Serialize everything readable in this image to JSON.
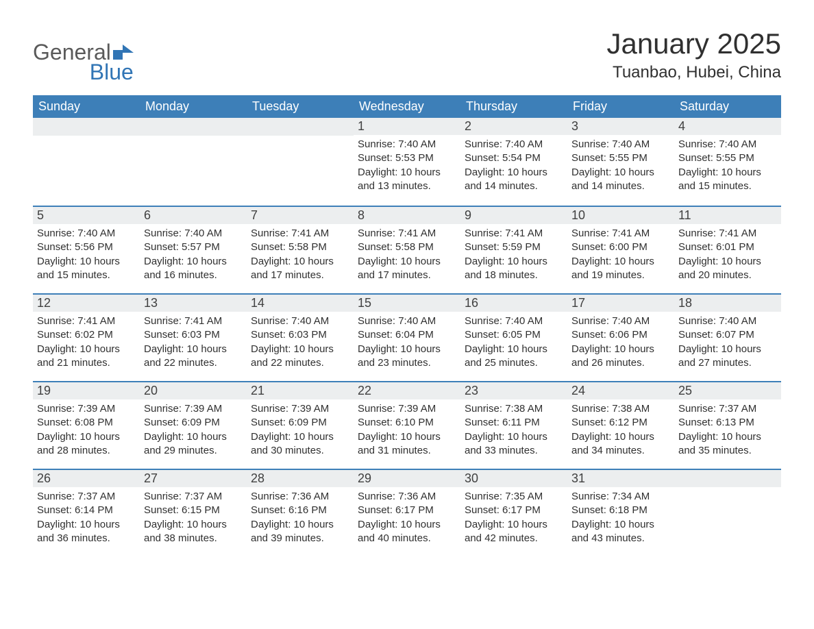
{
  "logo": {
    "general": "General",
    "blue": "Blue"
  },
  "title": "January 2025",
  "location": "Tuanbao, Hubei, China",
  "colors": {
    "header_bg": "#3d7fb8",
    "header_text": "#ffffff",
    "day_number_bg": "#eceeef",
    "border": "#3d7fb8",
    "body_text": "#303030",
    "logo_gray": "#5a5a5a",
    "logo_blue": "#3175b5",
    "background": "#ffffff"
  },
  "typography": {
    "title_fontsize": 42,
    "location_fontsize": 24,
    "header_fontsize": 18,
    "daynum_fontsize": 18,
    "body_fontsize": 15
  },
  "headers": [
    "Sunday",
    "Monday",
    "Tuesday",
    "Wednesday",
    "Thursday",
    "Friday",
    "Saturday"
  ],
  "weeks": [
    [
      null,
      null,
      null,
      {
        "day": "1",
        "sunrise": "Sunrise: 7:40 AM",
        "sunset": "Sunset: 5:53 PM",
        "daylight1": "Daylight: 10 hours",
        "daylight2": "and 13 minutes."
      },
      {
        "day": "2",
        "sunrise": "Sunrise: 7:40 AM",
        "sunset": "Sunset: 5:54 PM",
        "daylight1": "Daylight: 10 hours",
        "daylight2": "and 14 minutes."
      },
      {
        "day": "3",
        "sunrise": "Sunrise: 7:40 AM",
        "sunset": "Sunset: 5:55 PM",
        "daylight1": "Daylight: 10 hours",
        "daylight2": "and 14 minutes."
      },
      {
        "day": "4",
        "sunrise": "Sunrise: 7:40 AM",
        "sunset": "Sunset: 5:55 PM",
        "daylight1": "Daylight: 10 hours",
        "daylight2": "and 15 minutes."
      }
    ],
    [
      {
        "day": "5",
        "sunrise": "Sunrise: 7:40 AM",
        "sunset": "Sunset: 5:56 PM",
        "daylight1": "Daylight: 10 hours",
        "daylight2": "and 15 minutes."
      },
      {
        "day": "6",
        "sunrise": "Sunrise: 7:40 AM",
        "sunset": "Sunset: 5:57 PM",
        "daylight1": "Daylight: 10 hours",
        "daylight2": "and 16 minutes."
      },
      {
        "day": "7",
        "sunrise": "Sunrise: 7:41 AM",
        "sunset": "Sunset: 5:58 PM",
        "daylight1": "Daylight: 10 hours",
        "daylight2": "and 17 minutes."
      },
      {
        "day": "8",
        "sunrise": "Sunrise: 7:41 AM",
        "sunset": "Sunset: 5:58 PM",
        "daylight1": "Daylight: 10 hours",
        "daylight2": "and 17 minutes."
      },
      {
        "day": "9",
        "sunrise": "Sunrise: 7:41 AM",
        "sunset": "Sunset: 5:59 PM",
        "daylight1": "Daylight: 10 hours",
        "daylight2": "and 18 minutes."
      },
      {
        "day": "10",
        "sunrise": "Sunrise: 7:41 AM",
        "sunset": "Sunset: 6:00 PM",
        "daylight1": "Daylight: 10 hours",
        "daylight2": "and 19 minutes."
      },
      {
        "day": "11",
        "sunrise": "Sunrise: 7:41 AM",
        "sunset": "Sunset: 6:01 PM",
        "daylight1": "Daylight: 10 hours",
        "daylight2": "and 20 minutes."
      }
    ],
    [
      {
        "day": "12",
        "sunrise": "Sunrise: 7:41 AM",
        "sunset": "Sunset: 6:02 PM",
        "daylight1": "Daylight: 10 hours",
        "daylight2": "and 21 minutes."
      },
      {
        "day": "13",
        "sunrise": "Sunrise: 7:41 AM",
        "sunset": "Sunset: 6:03 PM",
        "daylight1": "Daylight: 10 hours",
        "daylight2": "and 22 minutes."
      },
      {
        "day": "14",
        "sunrise": "Sunrise: 7:40 AM",
        "sunset": "Sunset: 6:03 PM",
        "daylight1": "Daylight: 10 hours",
        "daylight2": "and 22 minutes."
      },
      {
        "day": "15",
        "sunrise": "Sunrise: 7:40 AM",
        "sunset": "Sunset: 6:04 PM",
        "daylight1": "Daylight: 10 hours",
        "daylight2": "and 23 minutes."
      },
      {
        "day": "16",
        "sunrise": "Sunrise: 7:40 AM",
        "sunset": "Sunset: 6:05 PM",
        "daylight1": "Daylight: 10 hours",
        "daylight2": "and 25 minutes."
      },
      {
        "day": "17",
        "sunrise": "Sunrise: 7:40 AM",
        "sunset": "Sunset: 6:06 PM",
        "daylight1": "Daylight: 10 hours",
        "daylight2": "and 26 minutes."
      },
      {
        "day": "18",
        "sunrise": "Sunrise: 7:40 AM",
        "sunset": "Sunset: 6:07 PM",
        "daylight1": "Daylight: 10 hours",
        "daylight2": "and 27 minutes."
      }
    ],
    [
      {
        "day": "19",
        "sunrise": "Sunrise: 7:39 AM",
        "sunset": "Sunset: 6:08 PM",
        "daylight1": "Daylight: 10 hours",
        "daylight2": "and 28 minutes."
      },
      {
        "day": "20",
        "sunrise": "Sunrise: 7:39 AM",
        "sunset": "Sunset: 6:09 PM",
        "daylight1": "Daylight: 10 hours",
        "daylight2": "and 29 minutes."
      },
      {
        "day": "21",
        "sunrise": "Sunrise: 7:39 AM",
        "sunset": "Sunset: 6:09 PM",
        "daylight1": "Daylight: 10 hours",
        "daylight2": "and 30 minutes."
      },
      {
        "day": "22",
        "sunrise": "Sunrise: 7:39 AM",
        "sunset": "Sunset: 6:10 PM",
        "daylight1": "Daylight: 10 hours",
        "daylight2": "and 31 minutes."
      },
      {
        "day": "23",
        "sunrise": "Sunrise: 7:38 AM",
        "sunset": "Sunset: 6:11 PM",
        "daylight1": "Daylight: 10 hours",
        "daylight2": "and 33 minutes."
      },
      {
        "day": "24",
        "sunrise": "Sunrise: 7:38 AM",
        "sunset": "Sunset: 6:12 PM",
        "daylight1": "Daylight: 10 hours",
        "daylight2": "and 34 minutes."
      },
      {
        "day": "25",
        "sunrise": "Sunrise: 7:37 AM",
        "sunset": "Sunset: 6:13 PM",
        "daylight1": "Daylight: 10 hours",
        "daylight2": "and 35 minutes."
      }
    ],
    [
      {
        "day": "26",
        "sunrise": "Sunrise: 7:37 AM",
        "sunset": "Sunset: 6:14 PM",
        "daylight1": "Daylight: 10 hours",
        "daylight2": "and 36 minutes."
      },
      {
        "day": "27",
        "sunrise": "Sunrise: 7:37 AM",
        "sunset": "Sunset: 6:15 PM",
        "daylight1": "Daylight: 10 hours",
        "daylight2": "and 38 minutes."
      },
      {
        "day": "28",
        "sunrise": "Sunrise: 7:36 AM",
        "sunset": "Sunset: 6:16 PM",
        "daylight1": "Daylight: 10 hours",
        "daylight2": "and 39 minutes."
      },
      {
        "day": "29",
        "sunrise": "Sunrise: 7:36 AM",
        "sunset": "Sunset: 6:17 PM",
        "daylight1": "Daylight: 10 hours",
        "daylight2": "and 40 minutes."
      },
      {
        "day": "30",
        "sunrise": "Sunrise: 7:35 AM",
        "sunset": "Sunset: 6:17 PM",
        "daylight1": "Daylight: 10 hours",
        "daylight2": "and 42 minutes."
      },
      {
        "day": "31",
        "sunrise": "Sunrise: 7:34 AM",
        "sunset": "Sunset: 6:18 PM",
        "daylight1": "Daylight: 10 hours",
        "daylight2": "and 43 minutes."
      },
      null
    ]
  ]
}
